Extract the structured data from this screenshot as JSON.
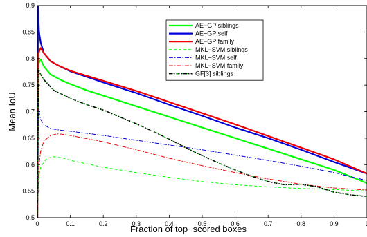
{
  "chart_data": {
    "type": "line",
    "title": "",
    "xlabel": "Fraction of top−scored boxes",
    "ylabel": "Mean IoU",
    "xlim": [
      0,
      1
    ],
    "ylim": [
      0.5,
      0.9
    ],
    "xticks": [
      0,
      0.1,
      0.2,
      0.3,
      0.4,
      0.5,
      0.6,
      0.7,
      0.8,
      0.9,
      1
    ],
    "yticks": [
      0.5,
      0.55,
      0.6,
      0.65,
      0.7,
      0.75,
      0.8,
      0.85,
      0.9
    ],
    "xtick_labels": [
      "0",
      "0.1",
      "0.2",
      "0.3",
      "0.4",
      "0.5",
      "0.6",
      "0.7",
      "0.8",
      "0.9",
      "1"
    ],
    "ytick_labels": [
      "0.5",
      "0.55",
      "0.6",
      "0.65",
      "0.7",
      "0.75",
      "0.8",
      "0.85",
      "0.9"
    ],
    "grid": false,
    "legend": "top-right",
    "series": [
      {
        "name": "AE−GP siblings",
        "color": "#00ff00",
        "style": "solid",
        "width": 2.2,
        "x": [
          0,
          0.003,
          0.01,
          0.02,
          0.04,
          0.07,
          0.1,
          0.15,
          0.2,
          0.3,
          0.4,
          0.5,
          0.6,
          0.7,
          0.8,
          0.9,
          1.0
        ],
        "y": [
          0.5,
          0.79,
          0.798,
          0.785,
          0.77,
          0.76,
          0.752,
          0.74,
          0.73,
          0.71,
          0.69,
          0.67,
          0.65,
          0.63,
          0.61,
          0.59,
          0.565
        ]
      },
      {
        "name": "AE−GP self",
        "color": "#0000dd",
        "style": "solid",
        "width": 2.2,
        "x": [
          0,
          0.002,
          0.005,
          0.01,
          0.02,
          0.04,
          0.06,
          0.1,
          0.2,
          0.3,
          0.4,
          0.5,
          0.6,
          0.7,
          0.8,
          0.9,
          1.0
        ],
        "y": [
          0.5,
          0.9,
          0.85,
          0.83,
          0.81,
          0.795,
          0.788,
          0.776,
          0.755,
          0.735,
          0.713,
          0.692,
          0.67,
          0.65,
          0.628,
          0.605,
          0.583
        ]
      },
      {
        "name": "AE−GP family",
        "color": "#ee0000",
        "style": "solid",
        "width": 2.2,
        "x": [
          0,
          0.003,
          0.01,
          0.02,
          0.04,
          0.06,
          0.1,
          0.2,
          0.3,
          0.4,
          0.5,
          0.6,
          0.7,
          0.8,
          0.9,
          1.0
        ],
        "y": [
          0.5,
          0.81,
          0.82,
          0.81,
          0.795,
          0.788,
          0.777,
          0.758,
          0.739,
          0.718,
          0.697,
          0.676,
          0.654,
          0.632,
          0.61,
          0.583
        ]
      },
      {
        "name": "MKL−SVM siblings",
        "color": "#00ff00",
        "style": "dashed",
        "width": 1,
        "x": [
          0,
          0.005,
          0.01,
          0.02,
          0.03,
          0.05,
          0.08,
          0.1,
          0.2,
          0.3,
          0.4,
          0.5,
          0.6,
          0.7,
          0.8,
          0.9,
          1.0
        ],
        "y": [
          0.5,
          0.58,
          0.595,
          0.605,
          0.612,
          0.615,
          0.612,
          0.608,
          0.595,
          0.585,
          0.576,
          0.568,
          0.562,
          0.558,
          0.555,
          0.553,
          0.55
        ]
      },
      {
        "name": "MKL−SVM self",
        "color": "#0000dd",
        "style": "dashdot",
        "width": 1,
        "x": [
          0,
          0.002,
          0.005,
          0.01,
          0.02,
          0.04,
          0.07,
          0.1,
          0.2,
          0.3,
          0.4,
          0.5,
          0.6,
          0.7,
          0.8,
          0.9,
          1.0
        ],
        "y": [
          0.5,
          0.72,
          0.7,
          0.685,
          0.675,
          0.668,
          0.665,
          0.663,
          0.655,
          0.646,
          0.637,
          0.628,
          0.618,
          0.608,
          0.597,
          0.585,
          0.57
        ]
      },
      {
        "name": "MKL−SVM family",
        "color": "#ee0000",
        "style": "dashdot",
        "width": 1,
        "x": [
          0,
          0.005,
          0.01,
          0.02,
          0.04,
          0.06,
          0.08,
          0.1,
          0.2,
          0.3,
          0.4,
          0.5,
          0.6,
          0.7,
          0.8,
          0.9,
          1.0
        ],
        "y": [
          0.5,
          0.6,
          0.625,
          0.645,
          0.655,
          0.658,
          0.657,
          0.655,
          0.643,
          0.628,
          0.612,
          0.598,
          0.585,
          0.573,
          0.563,
          0.556,
          0.552
        ]
      },
      {
        "name": "GF[3] siblings",
        "color": "#000000",
        "style": "dashdot-dotted",
        "width": 1.6,
        "x": [
          0,
          0.003,
          0.01,
          0.02,
          0.05,
          0.1,
          0.15,
          0.2,
          0.25,
          0.3,
          0.35,
          0.4,
          0.45,
          0.5,
          0.55,
          0.6,
          0.65,
          0.7,
          0.75,
          0.8,
          0.85,
          0.9,
          0.95,
          1.0
        ],
        "y": [
          0.5,
          0.78,
          0.77,
          0.76,
          0.74,
          0.725,
          0.713,
          0.703,
          0.69,
          0.677,
          0.663,
          0.648,
          0.632,
          0.617,
          0.603,
          0.59,
          0.578,
          0.568,
          0.562,
          0.563,
          0.558,
          0.548,
          0.543,
          0.54
        ]
      }
    ]
  }
}
